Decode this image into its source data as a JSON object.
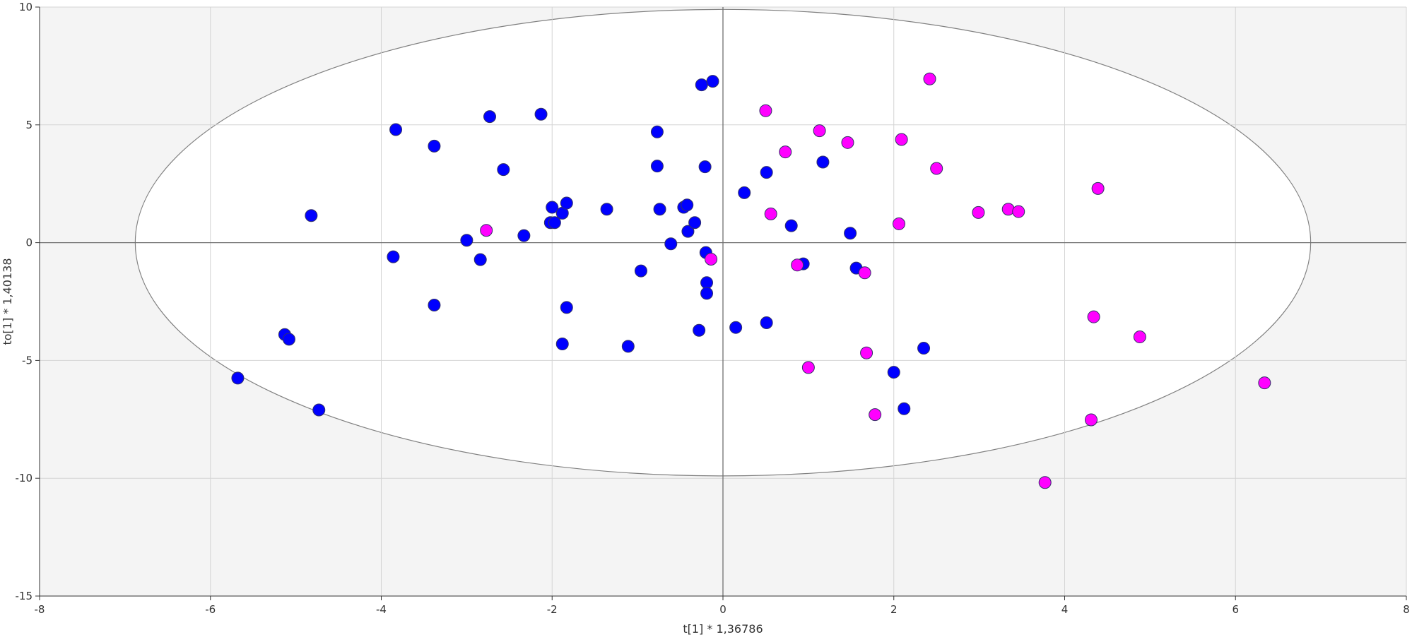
{
  "chart_data": {
    "type": "scatter",
    "title": "",
    "xlabel": "t[1] * 1,36786",
    "ylabel": "to[1] * 1,40138",
    "xlim": [
      -8,
      8
    ],
    "ylim": [
      -15,
      10
    ],
    "xticks": [
      -8,
      -6,
      -4,
      -2,
      0,
      2,
      4,
      6,
      8
    ],
    "yticks": [
      -15,
      -10,
      -5,
      0,
      5,
      10
    ],
    "grid": true,
    "confidence_ellipse": {
      "center": [
        0,
        0
      ],
      "semi_x": 6.88,
      "semi_y": 9.9
    },
    "colors": {
      "group_a": "#0000ff",
      "group_b": "#ff00ff",
      "plot_bg": "#f4f4f4",
      "ellipse_fill": "#ffffff"
    },
    "series": [
      {
        "color": "#0000ff",
        "points": [
          [
            -5.68,
            -5.75
          ],
          [
            -5.13,
            -3.9
          ],
          [
            -5.08,
            -4.1
          ],
          [
            -4.73,
            -7.1
          ],
          [
            -4.82,
            1.15
          ],
          [
            -3.83,
            4.8
          ],
          [
            -3.86,
            -0.6
          ],
          [
            -3.38,
            4.1
          ],
          [
            -3.38,
            -2.65
          ],
          [
            -3.0,
            0.1
          ],
          [
            -2.84,
            -0.72
          ],
          [
            -2.73,
            5.35
          ],
          [
            -2.57,
            3.1
          ],
          [
            -2.33,
            0.3
          ],
          [
            -2.13,
            5.45
          ],
          [
            -2.02,
            0.85
          ],
          [
            -2.0,
            1.5
          ],
          [
            -1.97,
            0.85
          ],
          [
            -1.88,
            1.25
          ],
          [
            -1.83,
            1.68
          ],
          [
            -1.83,
            -2.75
          ],
          [
            -1.88,
            -4.3
          ],
          [
            -1.36,
            1.42
          ],
          [
            -1.11,
            -4.4
          ],
          [
            -0.96,
            -1.2
          ],
          [
            -0.77,
            4.7
          ],
          [
            -0.77,
            3.25
          ],
          [
            -0.74,
            1.42
          ],
          [
            -0.61,
            -0.05
          ],
          [
            -0.46,
            1.5
          ],
          [
            -0.42,
            1.6
          ],
          [
            -0.41,
            0.48
          ],
          [
            -0.33,
            0.85
          ],
          [
            -0.28,
            -3.72
          ],
          [
            -0.25,
            6.7
          ],
          [
            -0.12,
            6.85
          ],
          [
            -0.21,
            3.22
          ],
          [
            -0.2,
            -0.42
          ],
          [
            -0.19,
            -1.7
          ],
          [
            -0.19,
            -2.15
          ],
          [
            0.15,
            -3.6
          ],
          [
            0.25,
            2.12
          ],
          [
            0.51,
            2.98
          ],
          [
            0.51,
            -3.4
          ],
          [
            0.8,
            0.72
          ],
          [
            0.94,
            -0.9
          ],
          [
            1.17,
            3.42
          ],
          [
            1.49,
            0.4
          ],
          [
            1.56,
            -1.08
          ],
          [
            2.0,
            -5.5
          ],
          [
            2.12,
            -7.05
          ],
          [
            2.35,
            -4.48
          ]
        ]
      },
      {
        "color": "#ff00ff",
        "points": [
          [
            -2.77,
            0.52
          ],
          [
            -0.14,
            -0.7
          ],
          [
            0.5,
            5.6
          ],
          [
            0.56,
            1.22
          ],
          [
            0.73,
            3.85
          ],
          [
            0.87,
            -0.95
          ],
          [
            1.0,
            -5.3
          ],
          [
            1.13,
            4.75
          ],
          [
            1.46,
            4.25
          ],
          [
            1.66,
            -1.28
          ],
          [
            1.68,
            -4.68
          ],
          [
            1.78,
            -7.3
          ],
          [
            2.06,
            0.8
          ],
          [
            2.09,
            4.38
          ],
          [
            2.42,
            6.95
          ],
          [
            2.5,
            3.15
          ],
          [
            2.99,
            1.28
          ],
          [
            3.34,
            1.42
          ],
          [
            3.46,
            1.32
          ],
          [
            3.77,
            -10.18
          ],
          [
            4.31,
            -7.52
          ],
          [
            4.34,
            -3.15
          ],
          [
            4.39,
            2.3
          ],
          [
            4.88,
            -4.0
          ],
          [
            6.34,
            -5.95
          ]
        ]
      }
    ]
  }
}
